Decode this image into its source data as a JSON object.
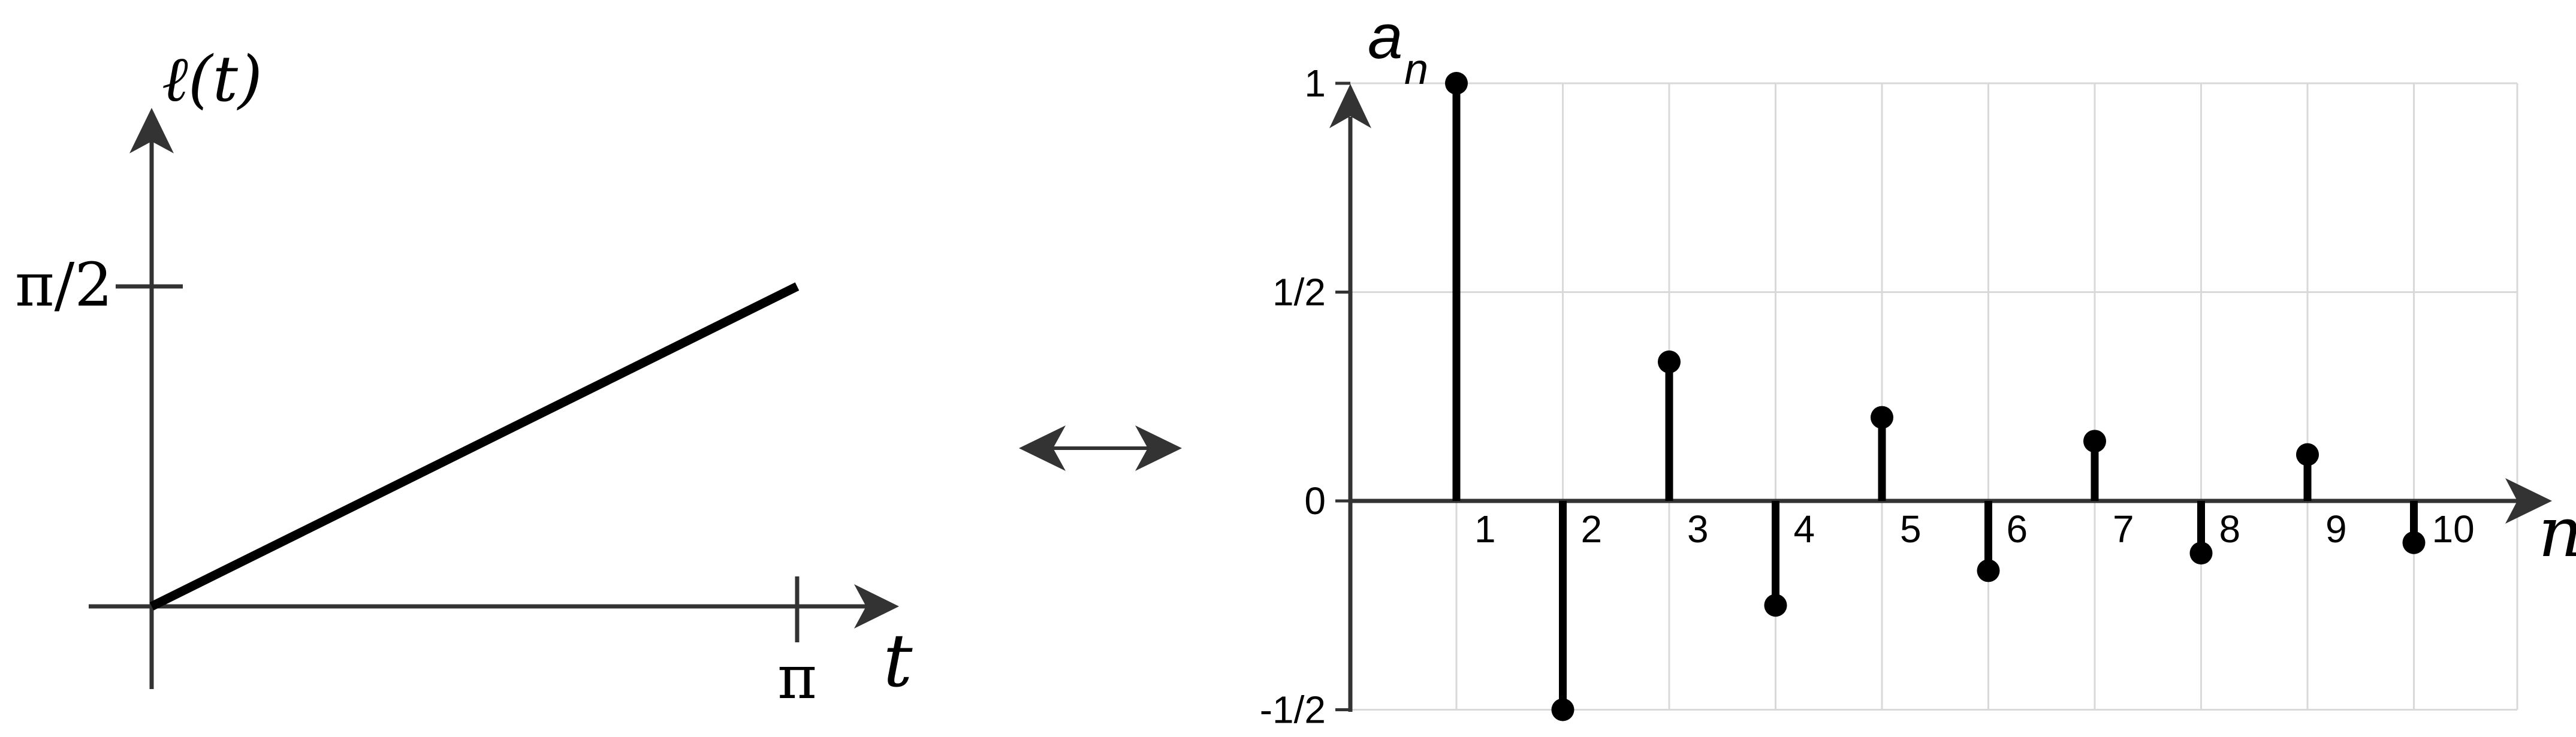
{
  "chart_data": [
    {
      "type": "line",
      "title": "",
      "ylabel": "ℓ(t)",
      "xlabel": "t",
      "x_ticks": [
        {
          "value": 3.14159,
          "label": "π"
        }
      ],
      "y_ticks": [
        {
          "value": 1.5708,
          "label": "π/2"
        }
      ],
      "series": [
        {
          "x": [
            0,
            3.14159
          ],
          "y": [
            0,
            1.5708
          ]
        }
      ],
      "xlim": [
        0,
        3.14159
      ],
      "ylim": [
        0,
        2.1
      ],
      "grid": false
    },
    {
      "type": "stem",
      "title": "",
      "ylabel_main": "a",
      "ylabel_sub": "n",
      "xlabel": "n",
      "x": [
        1,
        2,
        3,
        4,
        5,
        6,
        7,
        8,
        9,
        10
      ],
      "x_tick_labels": [
        "1",
        "2",
        "3",
        "4",
        "5",
        "6",
        "7",
        "8",
        "9",
        "10"
      ],
      "values": [
        1.0,
        -0.5,
        0.333,
        -0.25,
        0.2,
        -0.167,
        0.143,
        -0.125,
        0.111,
        -0.1
      ],
      "y_ticks": [
        {
          "value": 1,
          "label": "1"
        },
        {
          "value": 0.5,
          "label": "1/2"
        },
        {
          "value": 0,
          "label": "0"
        },
        {
          "value": -0.5,
          "label": "-1/2"
        }
      ],
      "ylim": [
        -0.5,
        1
      ],
      "xlim": [
        0,
        11
      ],
      "grid": true
    }
  ],
  "connector": {
    "icon": "double-arrow-icon"
  },
  "colors": {
    "ink": "#000000",
    "axis": "#333333",
    "grid": "#d9d9d9"
  }
}
